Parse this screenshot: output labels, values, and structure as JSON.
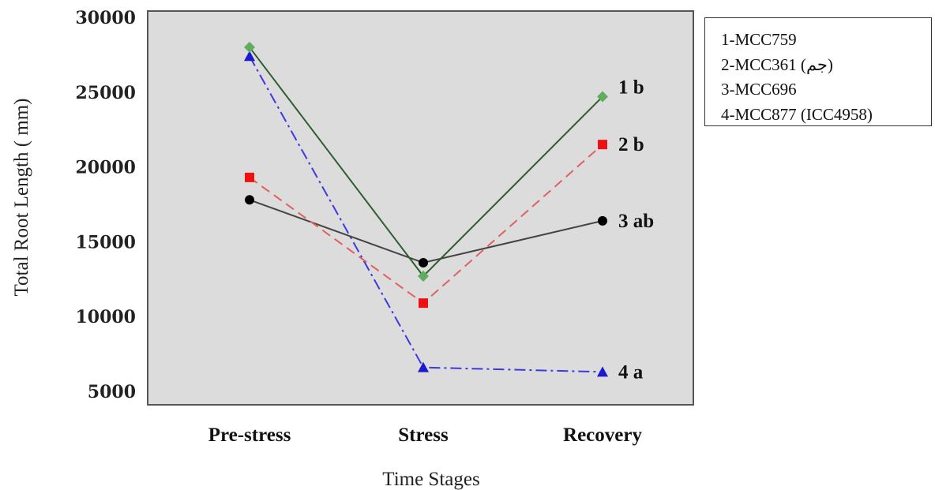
{
  "chart_data": {
    "type": "line",
    "title": "",
    "xlabel": "Time Stages",
    "ylabel": "Total Root Length ( mm)",
    "categories": [
      "Pre-stress",
      "Stress",
      "Recovery"
    ],
    "ylim": [
      5000,
      30000
    ],
    "yticks": [
      5000,
      10000,
      15000,
      20000,
      25000,
      30000
    ],
    "grid": false,
    "legend_position": "top-right",
    "legend": [
      "1-MCC759",
      "2-MCC361 (جم)",
      "3-MCC696",
      "4-MCC877 (ICC4958)"
    ],
    "series": [
      {
        "label": "1 b",
        "values": [
          28000,
          12700,
          24700
        ],
        "color": "#2e5e2e",
        "marker_color": "#5fae5f",
        "marker": "diamond",
        "dash": "solid"
      },
      {
        "label": "2 b",
        "values": [
          19300,
          10900,
          21500
        ],
        "color": "#e06060",
        "marker_color": "#ee1111",
        "marker": "square",
        "dash": "dashed"
      },
      {
        "label": "3 ab",
        "values": [
          17800,
          13600,
          16400
        ],
        "color": "#444444",
        "marker_color": "#000000",
        "marker": "circle",
        "dash": "solid"
      },
      {
        "label": "4 a",
        "values": [
          27400,
          6600,
          6300
        ],
        "color": "#3a3ae0",
        "marker_color": "#1a1ad0",
        "marker": "triangle",
        "dash": "dashdot"
      }
    ],
    "colors": {
      "plot_background": "#dcdcdc",
      "axis": "#555555"
    }
  }
}
